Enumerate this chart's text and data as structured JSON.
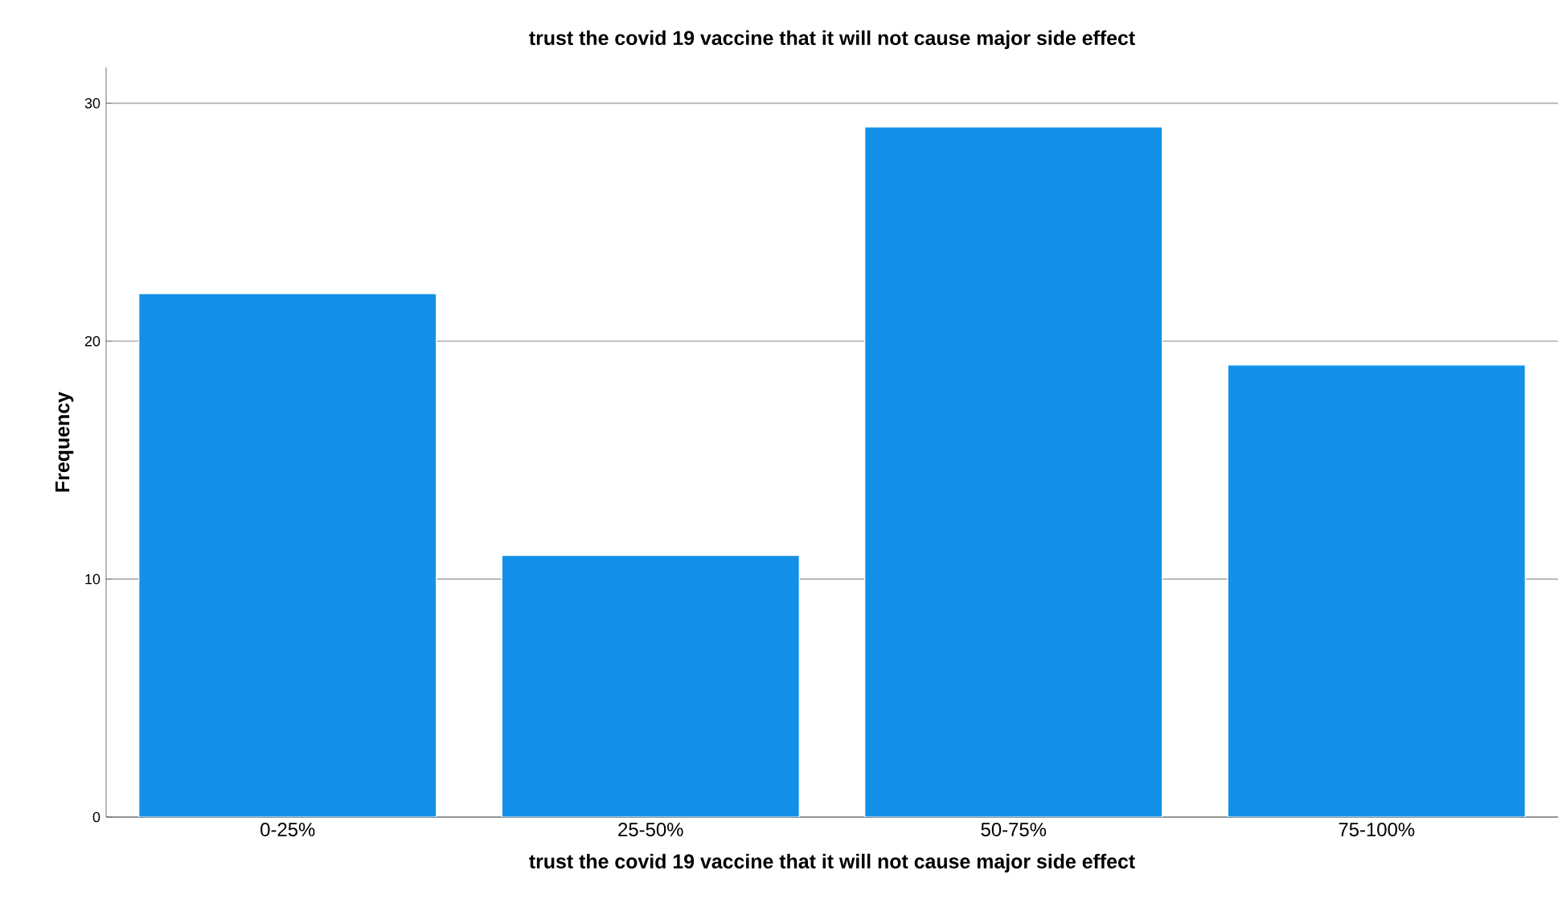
{
  "chart_data": {
    "type": "bar",
    "title": "trust the covid 19 vaccine that it will not cause major side effect",
    "xlabel": "trust the covid 19 vaccine that it will not cause major side effect",
    "ylabel": "Frequency",
    "categories": [
      "0-25%",
      "25-50%",
      "50-75%",
      "75-100%"
    ],
    "values": [
      22,
      11,
      29,
      19
    ],
    "color": "#1391e8",
    "ylim": [
      0,
      31.5
    ],
    "yticks": [
      0,
      10,
      20,
      30
    ],
    "grid": "y"
  }
}
